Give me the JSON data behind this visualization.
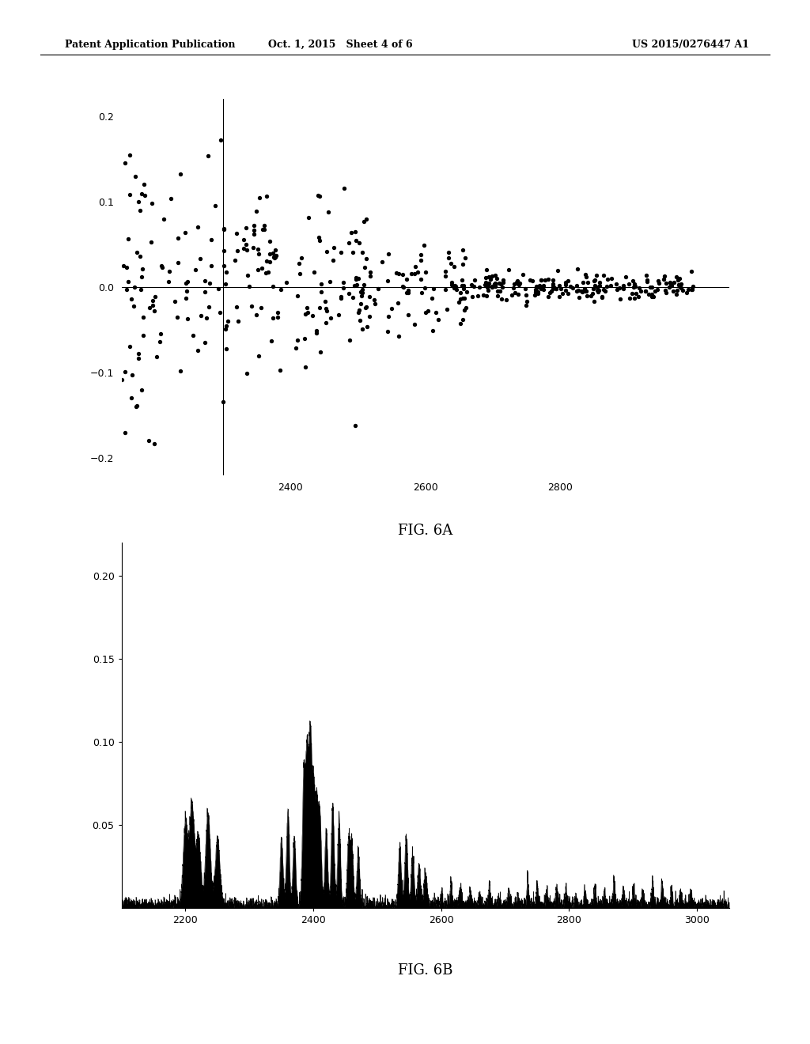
{
  "header_left": "Patent Application Publication",
  "header_mid": "Oct. 1, 2015   Sheet 4 of 6",
  "header_right": "US 2015/0276447 A1",
  "fig6a_label": "FIG. 6A",
  "fig6b_label": "FIG. 6B",
  "fig6a_ylim": [
    -0.22,
    0.22
  ],
  "fig6a_yticks": [
    -0.2,
    -0.1,
    0.0,
    0.1,
    0.2
  ],
  "fig6a_xlim": [
    2150,
    3050
  ],
  "fig6a_xticks": [
    2400,
    2600,
    2800
  ],
  "fig6b_ylim": [
    0,
    0.22
  ],
  "fig6b_yticks": [
    0.05,
    0.1,
    0.15,
    0.2
  ],
  "fig6b_xlim": [
    2100,
    3050
  ],
  "fig6b_xticks": [
    2200,
    2400,
    2600,
    2800,
    3000
  ],
  "background_color": "#ffffff",
  "scatter_color": "#000000",
  "line_color": "#000000"
}
